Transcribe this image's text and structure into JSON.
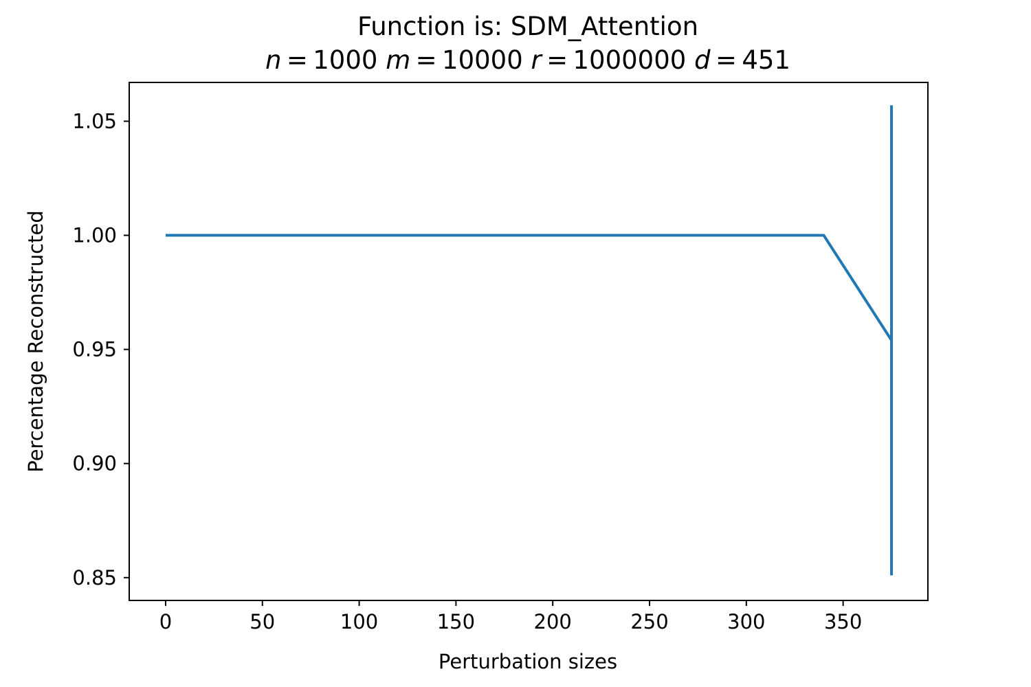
{
  "chart_data": {
    "type": "line",
    "title": "Function is: SDM_Attention",
    "subtitle_parts": [
      {
        "var": "n",
        "value": "1000"
      },
      {
        "var": "m",
        "value": "10000"
      },
      {
        "var": "r",
        "value": "1000000"
      },
      {
        "var": "d",
        "value": "451"
      }
    ],
    "xlabel": "Perturbation sizes",
    "ylabel": "Percentage Reconstructed",
    "xlim": [
      -18.8,
      393.8
    ],
    "ylim": [
      0.84,
      1.067
    ],
    "x_ticks": [
      0,
      50,
      100,
      150,
      200,
      250,
      300,
      350
    ],
    "x_tick_labels": [
      "0",
      "50",
      "100",
      "150",
      "200",
      "250",
      "300",
      "350"
    ],
    "y_ticks": [
      0.85,
      0.9,
      0.95,
      1.0,
      1.05
    ],
    "y_tick_labels": [
      "0.85",
      "0.90",
      "0.95",
      "1.00",
      "1.05"
    ],
    "grid": false,
    "series": [
      {
        "color": "#1f77b4",
        "x": [
          0,
          340,
          375
        ],
        "y": [
          1.0,
          1.0,
          0.954
        ]
      }
    ],
    "error_bars": [
      {
        "x": 375,
        "y_low": 0.851,
        "y_high": 1.057,
        "color": "#1f77b4"
      }
    ]
  }
}
